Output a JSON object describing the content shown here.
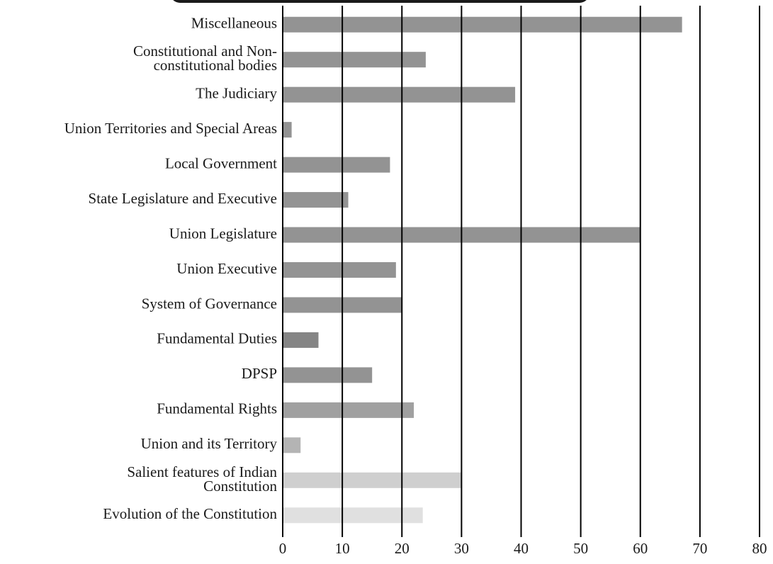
{
  "chart_data": {
    "type": "barh",
    "categories": [
      "Miscellaneous",
      "Constitutional and Non-\nconstitutional bodies",
      "The Judiciary",
      "Union Territories and Special Areas",
      "Local Government",
      "State Legislature and Executive",
      "Union Legislature",
      "Union Executive",
      "System of Governance",
      "Fundamental Duties",
      "DPSP",
      "Fundamental Rights",
      "Union and its Territory",
      "Salient features of Indian\nConstitution",
      "Evolution of the Constitution"
    ],
    "values": [
      67,
      24,
      39,
      1.5,
      18,
      11,
      60,
      19,
      20,
      6,
      15,
      22,
      3,
      30,
      23.5
    ],
    "colors": [
      "#939393",
      "#939393",
      "#939393",
      "#939393",
      "#939393",
      "#939393",
      "#939393",
      "#939393",
      "#939393",
      "#858585",
      "#939393",
      "#a0a0a0",
      "#b4b4b4",
      "#cfcfcf",
      "#e0e0e0"
    ],
    "xlim": [
      0,
      80
    ],
    "xticks": [
      0,
      10,
      20,
      30,
      40,
      50,
      60,
      70,
      80
    ],
    "grid": true
  }
}
